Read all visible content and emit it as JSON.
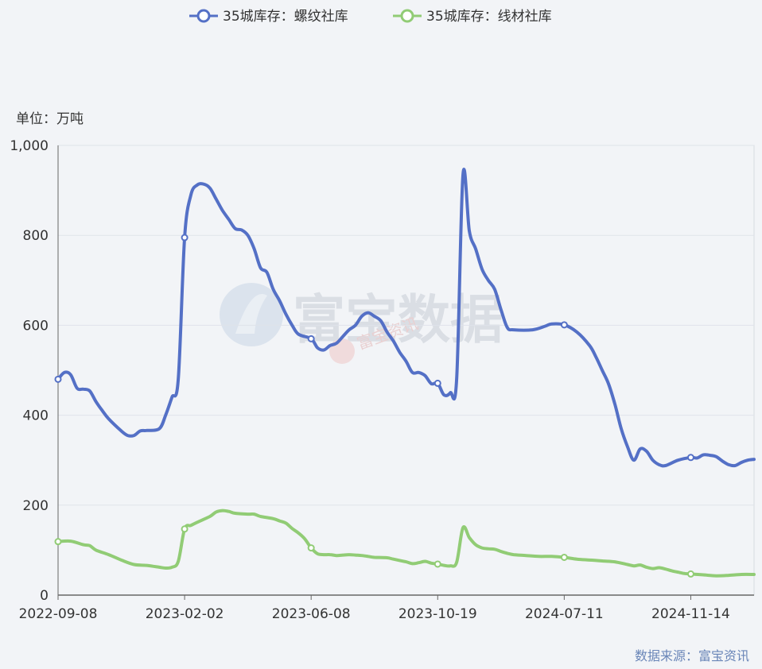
{
  "chart_data": {
    "type": "line",
    "unit_label": "单位：万吨",
    "source": "数据来源：富宝资讯",
    "watermark": "富宝数据",
    "watermark_sub": "富宝资讯",
    "ylim": [
      0,
      1000
    ],
    "y_ticks": [
      0,
      200,
      400,
      600,
      800,
      1000
    ],
    "y_tick_labels": [
      "0",
      "200",
      "400",
      "600",
      "800",
      "1,000"
    ],
    "x_tick_labels": [
      "2022-09-08",
      "2023-02-02",
      "2023-06-08",
      "2023-10-19",
      "2024-07-11",
      "2024-11-14"
    ],
    "x_domain": [
      0,
      110
    ],
    "x_tick_positions": [
      0,
      20,
      40,
      60,
      80,
      100
    ],
    "grid": true,
    "legend_position": "top-center",
    "series": [
      {
        "name": "35城库存：螺纹社库",
        "color": "#5470c6",
        "marker_indices": [
          0,
          20,
          40,
          60,
          80,
          100
        ],
        "points": [
          [
            0,
            480
          ],
          [
            1,
            495
          ],
          [
            2,
            490
          ],
          [
            3,
            460
          ],
          [
            4,
            458
          ],
          [
            5,
            454
          ],
          [
            6,
            430
          ],
          [
            7,
            410
          ],
          [
            8,
            392
          ],
          [
            10,
            365
          ],
          [
            11,
            355
          ],
          [
            12,
            355
          ],
          [
            13,
            365
          ],
          [
            14,
            366
          ],
          [
            16,
            370
          ],
          [
            17,
            400
          ],
          [
            18,
            440
          ],
          [
            19,
            480
          ],
          [
            20,
            795
          ],
          [
            21,
            890
          ],
          [
            22,
            912
          ],
          [
            23,
            914
          ],
          [
            24,
            905
          ],
          [
            25,
            880
          ],
          [
            26,
            855
          ],
          [
            27,
            835
          ],
          [
            28,
            815
          ],
          [
            29,
            812
          ],
          [
            30,
            800
          ],
          [
            31,
            770
          ],
          [
            32,
            728
          ],
          [
            33,
            718
          ],
          [
            34,
            680
          ],
          [
            35,
            655
          ],
          [
            36,
            625
          ],
          [
            37,
            600
          ],
          [
            38,
            580
          ],
          [
            40,
            570
          ],
          [
            41,
            550
          ],
          [
            42,
            545
          ],
          [
            43,
            555
          ],
          [
            44,
            560
          ],
          [
            45,
            575
          ],
          [
            46,
            590
          ],
          [
            47,
            600
          ],
          [
            48,
            620
          ],
          [
            49,
            628
          ],
          [
            50,
            620
          ],
          [
            51,
            610
          ],
          [
            52,
            585
          ],
          [
            53,
            565
          ],
          [
            54,
            540
          ],
          [
            55,
            520
          ],
          [
            56,
            495
          ],
          [
            57,
            495
          ],
          [
            58,
            488
          ],
          [
            59,
            470
          ],
          [
            60,
            471
          ],
          [
            61,
            445
          ],
          [
            62,
            450
          ],
          [
            63,
            480
          ],
          [
            64,
            935
          ],
          [
            65,
            810
          ],
          [
            66,
            770
          ],
          [
            67,
            725
          ],
          [
            68,
            700
          ],
          [
            69,
            680
          ],
          [
            70,
            635
          ],
          [
            71,
            595
          ],
          [
            72,
            590
          ],
          [
            75,
            590
          ],
          [
            77,
            598
          ],
          [
            78,
            603
          ],
          [
            80,
            601
          ],
          [
            82,
            585
          ],
          [
            84,
            555
          ],
          [
            85,
            530
          ],
          [
            86,
            500
          ],
          [
            87,
            470
          ],
          [
            88,
            425
          ],
          [
            89,
            370
          ],
          [
            90,
            330
          ],
          [
            91,
            300
          ],
          [
            92,
            325
          ],
          [
            93,
            320
          ],
          [
            94,
            300
          ],
          [
            95,
            290
          ],
          [
            96,
            288
          ],
          [
            98,
            300
          ],
          [
            100,
            306
          ],
          [
            101,
            305
          ],
          [
            102,
            312
          ],
          [
            103,
            311
          ],
          [
            104,
            308
          ],
          [
            105,
            298
          ],
          [
            106,
            290
          ],
          [
            107,
            288
          ],
          [
            108,
            295
          ],
          [
            109,
            300
          ],
          [
            110,
            302
          ]
        ]
      },
      {
        "name": "35城库存：线材社库",
        "color": "#91cc75",
        "marker_indices": [
          0,
          20,
          40,
          60,
          80,
          100
        ],
        "points": [
          [
            0,
            119
          ],
          [
            2,
            120
          ],
          [
            4,
            112
          ],
          [
            5,
            110
          ],
          [
            6,
            100
          ],
          [
            8,
            90
          ],
          [
            10,
            78
          ],
          [
            12,
            68
          ],
          [
            14,
            66
          ],
          [
            16,
            62
          ],
          [
            17,
            60
          ],
          [
            18,
            62
          ],
          [
            19,
            75
          ],
          [
            20,
            147
          ],
          [
            21,
            155
          ],
          [
            22,
            162
          ],
          [
            24,
            175
          ],
          [
            25,
            185
          ],
          [
            26,
            188
          ],
          [
            27,
            186
          ],
          [
            28,
            182
          ],
          [
            30,
            180
          ],
          [
            31,
            180
          ],
          [
            32,
            175
          ],
          [
            34,
            170
          ],
          [
            35,
            165
          ],
          [
            36,
            160
          ],
          [
            37,
            148
          ],
          [
            38,
            138
          ],
          [
            39,
            125
          ],
          [
            40,
            105
          ],
          [
            41,
            92
          ],
          [
            42,
            90
          ],
          [
            43,
            90
          ],
          [
            44,
            88
          ],
          [
            45,
            89
          ],
          [
            46,
            90
          ],
          [
            47,
            89
          ],
          [
            48,
            88
          ],
          [
            49,
            86
          ],
          [
            50,
            84
          ],
          [
            52,
            83
          ],
          [
            53,
            80
          ],
          [
            55,
            74
          ],
          [
            56,
            70
          ],
          [
            57,
            72
          ],
          [
            58,
            75
          ],
          [
            59,
            71
          ],
          [
            60,
            69
          ],
          [
            61,
            66
          ],
          [
            62,
            65
          ],
          [
            63,
            73
          ],
          [
            64,
            150
          ],
          [
            65,
            128
          ],
          [
            66,
            112
          ],
          [
            67,
            105
          ],
          [
            68,
            103
          ],
          [
            69,
            102
          ],
          [
            70,
            97
          ],
          [
            71,
            93
          ],
          [
            72,
            90
          ],
          [
            74,
            88
          ],
          [
            76,
            86
          ],
          [
            78,
            86
          ],
          [
            80,
            84
          ],
          [
            82,
            80
          ],
          [
            84,
            78
          ],
          [
            86,
            76
          ],
          [
            88,
            74
          ],
          [
            90,
            68
          ],
          [
            91,
            65
          ],
          [
            92,
            67
          ],
          [
            93,
            62
          ],
          [
            94,
            59
          ],
          [
            95,
            61
          ],
          [
            96,
            58
          ],
          [
            97,
            54
          ],
          [
            98,
            51
          ],
          [
            99,
            48
          ],
          [
            100,
            47
          ],
          [
            102,
            45
          ],
          [
            104,
            43
          ],
          [
            106,
            44
          ],
          [
            108,
            46
          ],
          [
            110,
            46
          ]
        ]
      }
    ]
  }
}
